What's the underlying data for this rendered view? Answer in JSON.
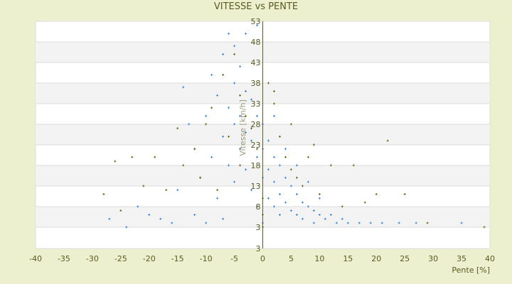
{
  "chart_data": {
    "type": "scatter",
    "title": "VITESSE vs PENTE",
    "xlabel": "Pente [%]",
    "ylabel": "Vitesse [km/h]",
    "xlim": [
      -40,
      40
    ],
    "ylim": [
      -2.2,
      53
    ],
    "x_ticks": [
      "-40",
      "-35",
      "-30",
      "-25",
      "-20",
      "-15",
      "-10",
      "-5",
      "0",
      "5",
      "10",
      "15",
      "20",
      "25",
      "30",
      "35",
      "40"
    ],
    "y_ticks": [
      "53",
      "48",
      "43",
      "38",
      "33",
      "28",
      "23",
      "18",
      "13",
      "8",
      "3",
      "3"
    ],
    "grid": true,
    "legend": "none",
    "series": [
      {
        "color": "#3a87d6",
        "points": [
          [
            -27,
            5
          ],
          [
            -24,
            3
          ],
          [
            -22,
            8
          ],
          [
            -20,
            6
          ],
          [
            -18,
            5
          ],
          [
            -16,
            4
          ],
          [
            -15,
            12
          ],
          [
            -14,
            37
          ],
          [
            -13,
            28
          ],
          [
            -12,
            22
          ],
          [
            -12,
            6
          ],
          [
            -11,
            15
          ],
          [
            -10,
            30
          ],
          [
            -10,
            4
          ],
          [
            -9,
            40
          ],
          [
            -9,
            20
          ],
          [
            -8,
            35
          ],
          [
            -8,
            10
          ],
          [
            -7,
            45
          ],
          [
            -7,
            25
          ],
          [
            -7,
            5
          ],
          [
            -6,
            50
          ],
          [
            -6,
            32
          ],
          [
            -6,
            18
          ],
          [
            -5,
            47
          ],
          [
            -5,
            38
          ],
          [
            -5,
            28
          ],
          [
            -5,
            14
          ],
          [
            -4,
            42
          ],
          [
            -4,
            30
          ],
          [
            -4,
            22
          ],
          [
            -3,
            36
          ],
          [
            -3,
            26
          ],
          [
            -3,
            17
          ],
          [
            -2,
            34
          ],
          [
            -2,
            24
          ],
          [
            -2,
            12
          ],
          [
            -1,
            30
          ],
          [
            -1,
            20
          ],
          [
            -1,
            8
          ],
          [
            0,
            28
          ],
          [
            0,
            22
          ],
          [
            0,
            15
          ],
          [
            0,
            4
          ],
          [
            1,
            24
          ],
          [
            1,
            17
          ],
          [
            1,
            10
          ],
          [
            2,
            20
          ],
          [
            2,
            14
          ],
          [
            2,
            8
          ],
          [
            3,
            18
          ],
          [
            3,
            11
          ],
          [
            3,
            6
          ],
          [
            4,
            15
          ],
          [
            4,
            9
          ],
          [
            5,
            13
          ],
          [
            5,
            7
          ],
          [
            6,
            11
          ],
          [
            6,
            6
          ],
          [
            7,
            9
          ],
          [
            7,
            5
          ],
          [
            8,
            8
          ],
          [
            9,
            7
          ],
          [
            9,
            4
          ],
          [
            10,
            6
          ],
          [
            11,
            5
          ],
          [
            12,
            6
          ],
          [
            13,
            4
          ],
          [
            14,
            5
          ],
          [
            15,
            4
          ],
          [
            17,
            4
          ],
          [
            19,
            4
          ],
          [
            21,
            4
          ],
          [
            24,
            4
          ],
          [
            27,
            4
          ],
          [
            35,
            4
          ],
          [
            -1,
            52
          ],
          [
            -3,
            50
          ],
          [
            2,
            30
          ],
          [
            4,
            22
          ],
          [
            6,
            18
          ],
          [
            8,
            14
          ],
          [
            10,
            10
          ]
        ]
      },
      {
        "color": "#6b6b1a",
        "points": [
          [
            -28,
            11
          ],
          [
            -26,
            19
          ],
          [
            -25,
            7
          ],
          [
            -23,
            20
          ],
          [
            -21,
            13
          ],
          [
            -19,
            20
          ],
          [
            -17,
            12
          ],
          [
            -15,
            27
          ],
          [
            -14,
            18
          ],
          [
            -12,
            22
          ],
          [
            -11,
            15
          ],
          [
            -10,
            28
          ],
          [
            -9,
            32
          ],
          [
            -8,
            12
          ],
          [
            -7,
            40
          ],
          [
            -6,
            25
          ],
          [
            -5,
            45
          ],
          [
            -4,
            35
          ],
          [
            -4,
            18
          ],
          [
            -3,
            30
          ],
          [
            -2,
            27
          ],
          [
            -1,
            22
          ],
          [
            0,
            10
          ],
          [
            0,
            6
          ],
          [
            0,
            3
          ],
          [
            1,
            38
          ],
          [
            2,
            33
          ],
          [
            3,
            25
          ],
          [
            4,
            20
          ],
          [
            5,
            17
          ],
          [
            6,
            15
          ],
          [
            7,
            13
          ],
          [
            8,
            20
          ],
          [
            9,
            23
          ],
          [
            10,
            11
          ],
          [
            12,
            18
          ],
          [
            14,
            8
          ],
          [
            16,
            18
          ],
          [
            18,
            9
          ],
          [
            20,
            11
          ],
          [
            22,
            24
          ],
          [
            25,
            11
          ],
          [
            29,
            4
          ],
          [
            39,
            3
          ],
          [
            2,
            36
          ],
          [
            5,
            28
          ]
        ]
      }
    ],
    "colors": {
      "background": "#ecf0ce",
      "plot_band": "#f3f3f3",
      "axis": "#5a5a22"
    }
  }
}
